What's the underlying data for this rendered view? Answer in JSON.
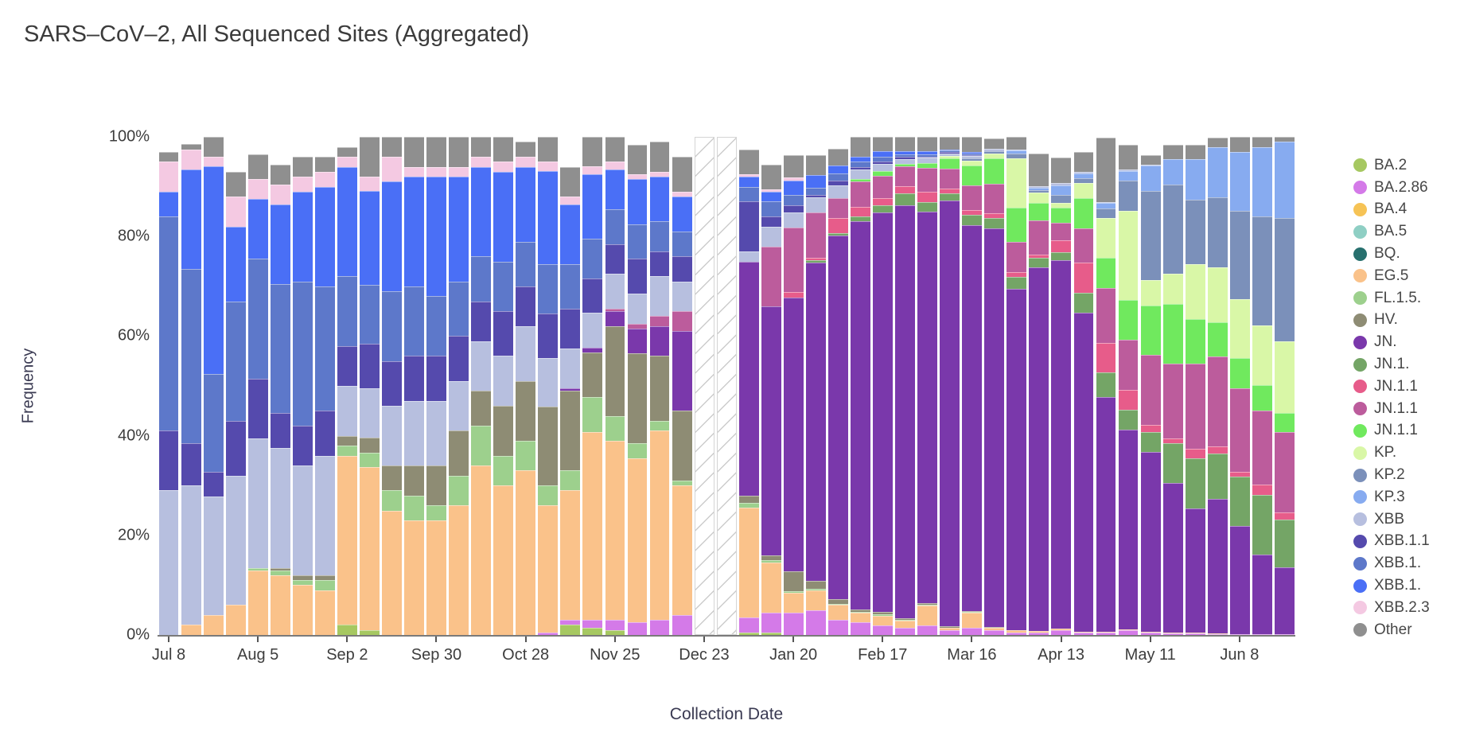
{
  "title": "SARS–CoV–2, All Sequenced Sites (Aggregated)",
  "x_axis": {
    "label": "Collection Date"
  },
  "y_axis": {
    "label": "Frequency",
    "ticks": [
      "0%",
      "20%",
      "40%",
      "60%",
      "80%",
      "100%"
    ]
  },
  "chart_data": {
    "type": "bar",
    "stacked": true,
    "orientation": "vertical",
    "grid": false,
    "legend_position": "right",
    "ylim": [
      0,
      100
    ],
    "y_tick_labels": [
      "0%",
      "20%",
      "40%",
      "60%",
      "80%",
      "100%"
    ],
    "x": [
      "Jul 8",
      "Jul 15",
      "Jul 22",
      "Jul 29",
      "Aug 5",
      "Aug 12",
      "Aug 19",
      "Aug 26",
      "Sep 2",
      "Sep 9",
      "Sep 16",
      "Sep 23",
      "Sep 30",
      "Oct 7",
      "Oct 14",
      "Oct 21",
      "Oct 28",
      "Nov 4",
      "Nov 11",
      "Nov 18",
      "Nov 25",
      "Dec 2",
      "Dec 9",
      "Dec 16",
      "Dec 23",
      "Dec 30",
      "Jan 6",
      "Jan 13",
      "Jan 20",
      "Jan 27",
      "Feb 3",
      "Feb 10",
      "Feb 17",
      "Feb 24",
      "Mar 2",
      "Mar 9",
      "Mar 16",
      "Mar 23",
      "Mar 30",
      "Apr 6",
      "Apr 13",
      "Apr 20",
      "Apr 27",
      "May 4",
      "May 11",
      "May 18",
      "May 25",
      "Jun 1",
      "Jun 8",
      "Jun 15",
      "Jun 22"
    ],
    "x_tick_positions": [
      0,
      4,
      8,
      12,
      16,
      20,
      24,
      28,
      32,
      36,
      40,
      44,
      48
    ],
    "x_tick_labels": [
      "Jul 8",
      "Aug 5",
      "Sep 2",
      "Sep 30",
      "Oct 28",
      "Nov 25",
      "Dec 23",
      "Jan 20",
      "Feb 17",
      "Mar 16",
      "Apr 13",
      "May 11",
      "Jun 8"
    ],
    "missing_data": {
      "indices": [
        24,
        25
      ],
      "weeks": [
        "Dec 23",
        "Dec 30"
      ],
      "pattern": "diagonal-hatch",
      "color": "#ffffff",
      "stripe_color": "#cccccc"
    },
    "series": [
      {
        "name": "BA.2",
        "color": "#a6c861",
        "values": [
          0,
          0,
          0,
          0,
          0,
          0,
          0,
          0,
          2,
          1,
          0,
          0,
          0,
          0,
          0,
          0,
          0,
          0,
          2,
          1.5,
          1,
          0,
          0,
          0,
          0,
          0,
          0.5,
          0.5,
          0,
          0,
          0,
          0,
          0,
          0,
          0,
          0,
          0,
          0,
          0,
          0,
          0,
          0,
          0,
          0,
          0,
          0,
          0,
          0,
          0,
          0,
          0
        ]
      },
      {
        "name": "BA.2.86",
        "color": "#d47ae8",
        "values": [
          0,
          0,
          0,
          0,
          0,
          0,
          0,
          0,
          0,
          0,
          0,
          0,
          0,
          0,
          0,
          0,
          0,
          0.5,
          1,
          1.5,
          2,
          2.5,
          3,
          4,
          0,
          0,
          3,
          4,
          4.5,
          5,
          3,
          2.5,
          2,
          1.5,
          2,
          1,
          1.5,
          1,
          0.5,
          0.5,
          1,
          0.5,
          0.5,
          1,
          0.5,
          0.3,
          0.3,
          0.2,
          0.2,
          0.2,
          0.2
        ]
      },
      {
        "name": "BA.4",
        "color": "#f6c355",
        "values": [
          0,
          0,
          0,
          0,
          0,
          0,
          0,
          0,
          0,
          0,
          0,
          0,
          0,
          0,
          0,
          0,
          0,
          0,
          0,
          0,
          0,
          0,
          0,
          0,
          0,
          0,
          0,
          0,
          0,
          0,
          0,
          0,
          0,
          0,
          0,
          0,
          0,
          0,
          0,
          0,
          0,
          0,
          0,
          0,
          0,
          0,
          0,
          0,
          0,
          0,
          0
        ]
      },
      {
        "name": "BA.5",
        "color": "#8fcfc4",
        "values": [
          0,
          0,
          0,
          0,
          0,
          0,
          0,
          0,
          0,
          0,
          0,
          0,
          0,
          0,
          0,
          0,
          0,
          0,
          0,
          0,
          0,
          0,
          0,
          0,
          0,
          0,
          0,
          0,
          0,
          0,
          0,
          0,
          0,
          0,
          0,
          0,
          0,
          0,
          0,
          0,
          0,
          0,
          0,
          0,
          0,
          0,
          0,
          0,
          0,
          0,
          0
        ]
      },
      {
        "name": "BQ.",
        "color": "#27706e",
        "values": [
          0,
          0,
          0,
          0,
          0,
          0,
          0,
          0,
          0,
          0,
          0,
          0,
          0,
          0,
          0,
          0,
          0,
          0,
          0,
          0,
          0,
          0,
          0,
          0,
          0,
          0,
          0,
          0,
          0,
          0,
          0,
          0,
          0,
          0,
          0,
          0,
          0,
          0,
          0,
          0,
          0,
          0,
          0,
          0,
          0,
          0,
          0,
          0,
          0,
          0,
          0
        ]
      },
      {
        "name": "EG.5",
        "color": "#fac28a",
        "values": [
          0,
          2,
          4,
          6,
          13,
          12,
          10,
          9,
          34,
          33,
          25,
          23,
          23,
          26,
          34,
          30,
          33,
          26,
          26,
          38,
          36,
          33,
          38,
          26,
          0,
          0,
          22,
          10,
          4,
          4,
          3,
          2,
          2,
          1.5,
          4,
          0.5,
          3,
          0.5,
          0.5,
          0.3,
          0.3,
          0.2,
          0.2,
          0.2,
          0.2,
          0.1,
          0.1,
          0.1,
          0,
          0,
          0
        ]
      },
      {
        "name": "FL.1.5.",
        "color": "#9dd08d",
        "values": [
          0,
          0,
          0,
          0,
          0.5,
          1,
          1,
          2,
          2,
          3,
          4,
          5,
          3,
          6,
          8,
          6,
          6,
          4,
          4,
          7,
          5,
          3,
          2,
          1,
          0,
          0,
          1,
          0.5,
          0.3,
          0.3,
          0.2,
          0.2,
          0.2,
          0.1,
          0.1,
          0,
          0.2,
          0,
          0,
          0,
          0,
          0,
          0,
          0,
          0,
          0,
          0,
          0,
          0,
          0,
          0
        ]
      },
      {
        "name": "HV.",
        "color": "#8e8c74",
        "values": [
          0,
          0,
          0,
          0,
          0,
          0.5,
          1,
          1,
          2,
          3,
          5,
          6,
          8,
          9,
          7,
          10,
          12,
          16,
          16,
          9,
          18,
          18,
          13,
          14,
          0,
          0,
          1.5,
          1,
          4,
          1.5,
          1,
          0.5,
          0.5,
          0.3,
          0.3,
          0.2,
          0.2,
          0.1,
          0,
          0,
          0,
          0,
          0,
          0,
          0,
          0,
          0,
          0,
          0,
          0,
          0
        ]
      },
      {
        "name": "JN.",
        "color": "#7a38ab",
        "values": [
          0,
          0,
          0,
          0,
          0,
          0,
          0,
          0,
          0,
          0,
          0,
          0,
          0,
          0,
          0,
          0,
          0,
          0,
          0.5,
          1,
          3,
          5,
          6,
          16,
          0,
          0,
          47,
          50,
          55,
          64,
          73,
          78,
          82,
          84,
          80,
          86,
          78,
          80,
          69,
          73,
          74,
          64,
          47,
          40,
          36,
          30,
          25,
          27,
          22,
          16,
          14
        ]
      },
      {
        "name": "JN.1.",
        "color": "#74a566",
        "values": [
          0,
          0,
          0,
          0,
          0,
          0,
          0,
          0,
          0,
          0,
          0,
          0,
          0,
          0,
          0,
          0,
          0,
          0,
          0,
          0,
          0,
          0,
          0,
          0,
          0,
          0,
          0,
          0,
          0,
          0.5,
          0.5,
          1,
          1.5,
          2.5,
          2,
          1.5,
          2,
          2,
          2.5,
          2,
          1.5,
          4,
          5,
          4,
          4,
          8,
          10,
          9,
          10,
          12,
          10
        ]
      },
      {
        "name": "JN.1.1",
        "color": "#e75c8a",
        "values": [
          0,
          0,
          0,
          0,
          0,
          0,
          0,
          0,
          0,
          0,
          0,
          0,
          0,
          0,
          0,
          0,
          0,
          0,
          0,
          0,
          0,
          0,
          0,
          0,
          0,
          0,
          0,
          0,
          1,
          0.5,
          3,
          2,
          1.5,
          1.5,
          2,
          1,
          1,
          1,
          1,
          0.5,
          2.5,
          6,
          6,
          4,
          1.5,
          1,
          2,
          1.5,
          1,
          2,
          1.5
        ]
      },
      {
        "name": "JN.1.1",
        "color": "#bc5c9c",
        "values": [
          0,
          0,
          0,
          0,
          0,
          0,
          0,
          0,
          0,
          0,
          0,
          0,
          0,
          0,
          0,
          0,
          0,
          0,
          0,
          0,
          0.5,
          1,
          2,
          4,
          0,
          0,
          0,
          12,
          13,
          9,
          4,
          5,
          4.5,
          4,
          5,
          4,
          5,
          6,
          6,
          7,
          3.5,
          7,
          11,
          10,
          14,
          15,
          17,
          18,
          17,
          15,
          17
        ]
      },
      {
        "name": "JN.1.1",
        "color": "#70e95e",
        "values": [
          0,
          0,
          0,
          0,
          0,
          0,
          0,
          0,
          0,
          0,
          0,
          0,
          0,
          0,
          0,
          0,
          0,
          0,
          0,
          0,
          0,
          0,
          0,
          0,
          0,
          0,
          0,
          0,
          0,
          0,
          0,
          0.5,
          1,
          0.5,
          1,
          2,
          4,
          5,
          7,
          3.5,
          3,
          6,
          6,
          8,
          10,
          12,
          9,
          7,
          6,
          5,
          4
        ]
      },
      {
        "name": "KP.",
        "color": "#d9f7a7",
        "values": [
          0,
          0,
          0,
          0,
          0,
          0,
          0,
          0,
          0,
          0,
          0,
          0,
          0,
          0,
          0,
          0,
          0,
          0,
          0,
          0,
          0,
          0,
          0,
          0,
          0,
          0,
          0,
          0,
          0,
          0,
          0,
          0,
          0,
          0,
          0,
          0.5,
          1,
          1,
          10,
          2,
          1,
          3,
          8,
          18,
          5,
          6,
          11,
          11,
          12,
          12,
          15
        ]
      },
      {
        "name": "KP.2",
        "color": "#7b90ba",
        "values": [
          0,
          0,
          0,
          0,
          0,
          0,
          0,
          0,
          0,
          0,
          0,
          0,
          0,
          0,
          0,
          0,
          0,
          0,
          0,
          0,
          0,
          0,
          0,
          0,
          0,
          0,
          0,
          0,
          0,
          0,
          0,
          0,
          0,
          0,
          0,
          0,
          0.5,
          0.5,
          1,
          0.5,
          1.5,
          1,
          2,
          6,
          18,
          18,
          13,
          14,
          18,
          22,
          26
        ]
      },
      {
        "name": "KP.3",
        "color": "#87abf0",
        "values": [
          0,
          0,
          0,
          0,
          0,
          0,
          0,
          0,
          0,
          0,
          0,
          0,
          0,
          0,
          0,
          0,
          0,
          0,
          0,
          0,
          0,
          0,
          0,
          0,
          0,
          0,
          0,
          0,
          0,
          0,
          0,
          0,
          0,
          0,
          0,
          0,
          0,
          0,
          0.5,
          0.5,
          2,
          1,
          1,
          2,
          5,
          5,
          8,
          10,
          12,
          14,
          16
        ]
      },
      {
        "name": "XBB",
        "color": "#b7bfdf",
        "values": [
          29,
          28,
          24,
          26,
          26,
          24,
          22,
          24,
          10,
          10,
          12,
          13,
          13,
          10,
          10,
          10,
          11,
          10,
          8,
          7,
          7,
          6,
          8,
          6,
          0,
          0,
          2,
          4,
          3,
          3,
          2.5,
          2,
          1.5,
          1,
          1,
          0.5,
          0.5,
          0.5,
          0.3,
          0.3,
          0.5,
          0.3,
          0.2,
          0.2,
          0.2,
          0,
          0,
          0,
          0,
          0,
          0
        ]
      },
      {
        "name": "XBB.1.1",
        "color": "#554aad",
        "values": [
          12,
          8.5,
          5,
          11,
          12,
          7,
          8,
          9,
          8,
          9,
          9,
          9,
          9,
          9,
          8,
          9,
          8,
          9,
          8,
          7,
          6,
          7,
          5,
          5,
          0,
          0,
          10,
          2,
          1.5,
          0.5,
          1,
          0.5,
          0.5,
          0.5,
          0.3,
          0.3,
          0.2,
          0,
          0,
          0,
          0,
          0,
          0,
          0,
          0,
          0,
          0,
          0,
          0,
          0,
          0
        ]
      },
      {
        "name": "XBB.1.",
        "color": "#5d78ca",
        "values": [
          43,
          35,
          20,
          24,
          24,
          26,
          29,
          25,
          14,
          12,
          14,
          14,
          12,
          11,
          9,
          10,
          9,
          10,
          9,
          8,
          7,
          7,
          6,
          5,
          0,
          0,
          3,
          3,
          2,
          1.5,
          1.5,
          1,
          1,
          0.5,
          0.5,
          0.3,
          0.3,
          0,
          0,
          0,
          0,
          0,
          0,
          0,
          0,
          0,
          0,
          0,
          0,
          0,
          0
        ]
      },
      {
        "name": "XBB.1.",
        "color": "#4a6ff6",
        "values": [
          5,
          20,
          42,
          15,
          12,
          16,
          18,
          20,
          22,
          19,
          22,
          22,
          24,
          21,
          18,
          18,
          15,
          19,
          12,
          13,
          8,
          9,
          9,
          7,
          0,
          0,
          2,
          2,
          3,
          2.5,
          1.5,
          1,
          1,
          0.5,
          0.5,
          0.3,
          0.3,
          0,
          0,
          0,
          0,
          0,
          0,
          0,
          0,
          0,
          0,
          0,
          0,
          0,
          0
        ]
      },
      {
        "name": "XBB.2.3",
        "color": "#f4c9e2",
        "values": [
          6,
          4,
          2,
          6,
          4,
          4,
          3,
          3,
          2,
          3,
          5,
          2,
          2,
          2,
          2,
          2,
          2,
          2,
          1.5,
          1.5,
          1.5,
          1,
          1,
          1,
          0,
          0,
          0.5,
          0.5,
          0.5,
          0,
          0,
          0,
          0,
          0,
          0,
          0,
          0,
          0,
          0,
          0,
          0,
          0,
          0,
          0,
          0,
          0,
          0,
          0,
          0,
          0,
          0
        ]
      },
      {
        "name": "Other",
        "color": "#8f8f8f",
        "values": [
          2,
          1,
          4,
          5,
          5,
          4,
          4,
          3,
          2,
          8,
          4,
          6,
          6,
          6,
          4,
          5,
          3,
          5,
          6,
          6,
          5,
          6,
          6,
          7,
          0,
          0,
          5,
          5,
          4.5,
          4,
          3.5,
          4,
          3,
          3,
          3,
          2.5,
          3,
          2,
          2.5,
          6.5,
          5,
          4,
          13,
          5,
          2,
          3,
          3,
          2,
          3,
          2,
          1
        ]
      }
    ]
  }
}
